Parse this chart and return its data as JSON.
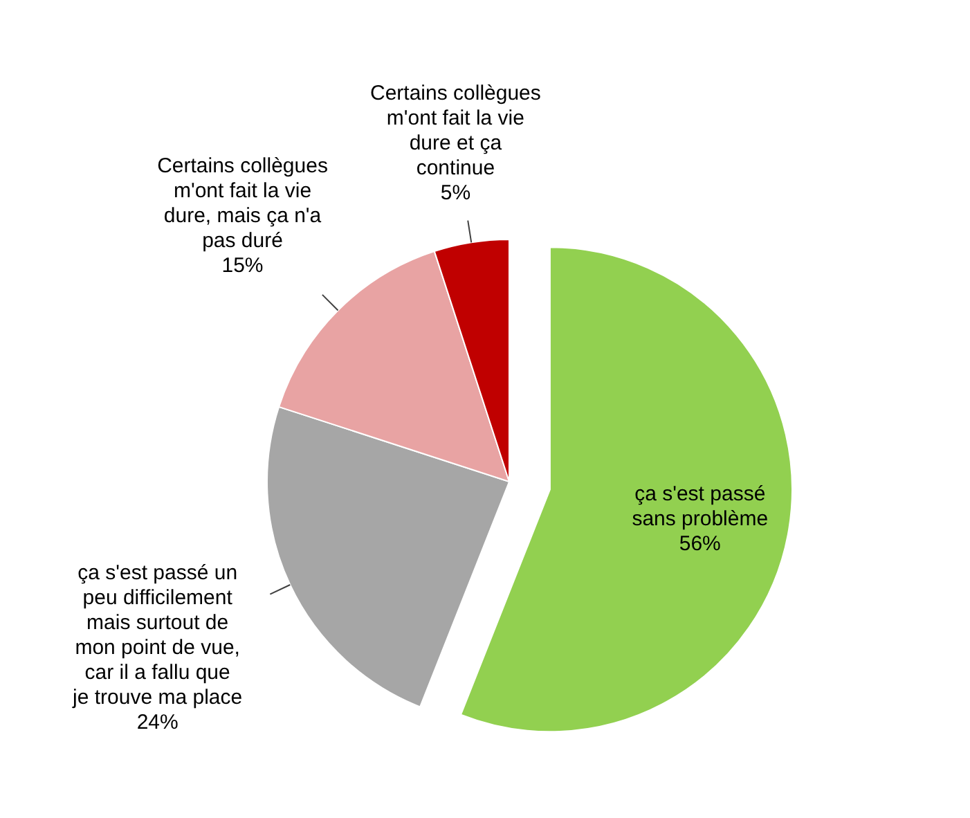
{
  "chart_data": {
    "type": "pie",
    "categories": [
      "ça s'est passé sans problème",
      "ça s'est passé un peu difficilement mais surtout de mon point de vue, car il a fallu que je trouve ma place",
      "Certains collègues m'ont fait la vie dure, mais ça n'a pas duré",
      "Certains collègues m'ont fait la vie dure et ça continue"
    ],
    "values": [
      56,
      24,
      15,
      5
    ],
    "value_labels": [
      "56%",
      "24%",
      "15%",
      "5%"
    ],
    "colors": [
      "#92d050",
      "#a6a6a6",
      "#e8a3a3",
      "#c00000"
    ]
  }
}
